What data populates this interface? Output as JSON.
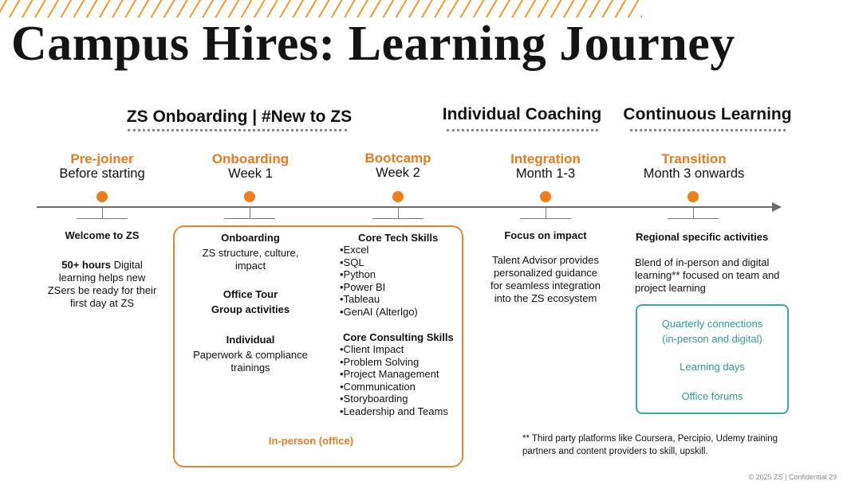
{
  "title": "Campus Hires: Learning Journey",
  "sections": {
    "onboarding": "ZS Onboarding | #New to ZS",
    "coaching": "Individual Coaching",
    "continuous": "Continuous Learning"
  },
  "phases": [
    {
      "name": "Pre-joiner",
      "time": "Before starting"
    },
    {
      "name": "Onboarding",
      "time": "Week 1"
    },
    {
      "name": "Bootcamp",
      "time": "Week 2"
    },
    {
      "name": "Integration",
      "time": "Month 1-3"
    },
    {
      "name": "Transition",
      "time": "Month 3 onwards"
    }
  ],
  "welcome": {
    "heading": "Welcome to ZS",
    "hours": "50+ hours",
    "line1": "Digital",
    "line2": "learning helps new",
    "line3": "ZSers be ready for their",
    "line4": "first day at ZS"
  },
  "onboarding_col": {
    "heading": "Onboarding",
    "line1": "ZS structure, culture,",
    "line2": "impact",
    "office_tour": "Office Tour",
    "group": "Group activities",
    "individual": "Individual",
    "paper1": "Paperwork & compliance",
    "paper2": "trainings"
  },
  "bootcamp": {
    "tech_heading": "Core Tech Skills",
    "tech_items": [
      "•Excel",
      "•SQL",
      "•Python",
      "•Power BI",
      "•Tableau",
      "•GenAI (Alterlgo)"
    ],
    "consulting_heading": "Core Consulting Skills",
    "consulting_items": [
      "•Client Impact",
      "•Problem Solving",
      "•Project Management",
      "•Communication",
      "•Storyboarding",
      "•Leadership and Teams"
    ]
  },
  "in_person_label": "In-person (office)",
  "integration": {
    "heading": "Focus on impact",
    "line1": "Talent Advisor provides",
    "line2": "personalized guidance",
    "line3": "for seamless integration",
    "line4": "into the ZS ecosystem"
  },
  "transition": {
    "heading": "Regional specific activities",
    "line1": "Blend of in-person and digital",
    "line2": "learning** focused on team and",
    "line3": "project learning"
  },
  "continuous_box": {
    "item1a": "Quarterly connections",
    "item1b": "(in-person and digital)",
    "item2": "Learning days",
    "item3": "Office forums"
  },
  "footnote": {
    "line1": "** Third party platforms like Coursera, Percipio, Udemy training",
    "line2": "partners and  content providers to skill, upskill."
  },
  "footer": "© 2025 ZS | Confidential     29",
  "colors": {
    "accent_orange": "#ee7f1a",
    "teal": "#3aa99a",
    "axis_gray": "#6b6b6b"
  }
}
